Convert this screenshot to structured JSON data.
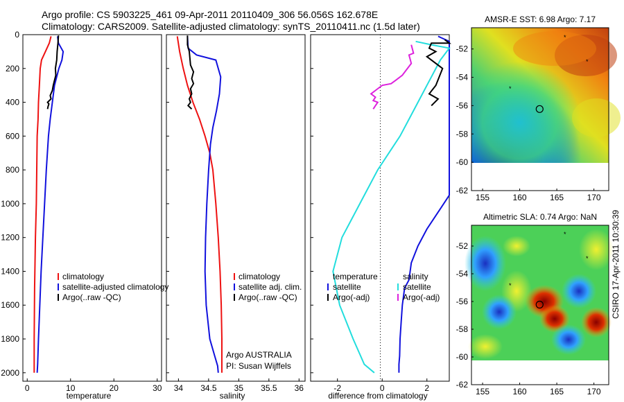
{
  "header": {
    "line1": "Argo profile: CS 5903225_461 09-Apr-2011 20110409_306 56.056S 162.678E",
    "line2": "Climatology: CARS2009. Satellite-adjusted climatology: synTS_20110411.nc (1.5d later)"
  },
  "side_label": "CSIRO 17-Apr-2011 10:30:39",
  "colors": {
    "red": "#ee1111",
    "blue": "#1010dd",
    "black": "#000000",
    "cyan": "#22dddd",
    "magenta": "#dd22dd"
  },
  "chart_data": [
    {
      "type": "line",
      "xlabel": "temperature",
      "ylabel": "",
      "xlim": [
        -1,
        31
      ],
      "ylim": [
        2050,
        0
      ],
      "xticks": [
        0,
        10,
        20,
        30
      ],
      "yticks": [
        0,
        200,
        400,
        600,
        800,
        1000,
        1200,
        1400,
        1600,
        1800,
        2000
      ],
      "series": [
        {
          "name": "climatology",
          "color": "#ee1111",
          "x": [
            5.5,
            5.1,
            4.2,
            3.3,
            3.0,
            2.8,
            2.6,
            2.5,
            2.3,
            2.2,
            2.1,
            1.9,
            1.7,
            1.6,
            1.6
          ],
          "y": [
            10,
            50,
            100,
            150,
            200,
            300,
            400,
            500,
            600,
            800,
            1000,
            1200,
            1500,
            1800,
            2000
          ]
        },
        {
          "name": "satellite-adjusted climatology",
          "color": "#1010dd",
          "x": [
            7.0,
            7.2,
            8.3,
            8.0,
            7.3,
            6.3,
            5.8,
            5.3,
            4.9,
            4.4,
            4.0,
            3.6,
            3.2,
            2.9,
            2.6,
            2.4,
            2.3
          ],
          "y": [
            10,
            50,
            100,
            150,
            200,
            300,
            400,
            500,
            600,
            800,
            1000,
            1200,
            1400,
            1600,
            1800,
            1950,
            2000
          ]
        },
        {
          "name": "Argo(..raw -QC)",
          "color": "#000000",
          "x": [
            7.2,
            7.1,
            6.9,
            6.8,
            6.5,
            6.6,
            6.2,
            6.0,
            5.8,
            5.3,
            5.5,
            4.7,
            5.0,
            4.8,
            4.7
          ],
          "y": [
            5,
            50,
            100,
            150,
            200,
            240,
            280,
            300,
            330,
            360,
            380,
            400,
            410,
            425,
            440
          ]
        }
      ],
      "legend": [
        "climatology",
        "satellite-adjusted climatology",
        "Argo(..raw -QC)"
      ],
      "legend_position": "lower-right"
    },
    {
      "type": "line",
      "xlabel": "salinity",
      "ylabel": "",
      "xlim": [
        33.8,
        36.1
      ],
      "ylim": [
        2050,
        0
      ],
      "xticks": [
        34,
        34.5,
        35,
        35.5,
        36
      ],
      "series": [
        {
          "name": "climatology",
          "color": "#ee1111",
          "x": [
            33.98,
            34.02,
            34.08,
            34.15,
            34.24,
            34.35,
            34.44,
            34.52,
            34.57,
            34.62,
            34.66,
            34.69,
            34.71,
            34.72,
            34.72
          ],
          "y": [
            10,
            100,
            200,
            300,
            400,
            500,
            600,
            700,
            800,
            1000,
            1200,
            1400,
            1600,
            1800,
            2000
          ]
        },
        {
          "name": "satellite adj. clim.",
          "color": "#1010dd",
          "x": [
            34.15,
            34.16,
            34.3,
            34.62,
            34.7,
            34.68,
            34.63,
            34.57,
            34.53,
            34.5,
            34.47,
            34.45,
            34.44,
            34.46,
            34.52,
            34.6,
            34.65,
            34.66
          ],
          "y": [
            10,
            80,
            120,
            150,
            250,
            350,
            450,
            550,
            650,
            800,
            1000,
            1200,
            1400,
            1600,
            1800,
            1900,
            1960,
            2000
          ]
        },
        {
          "name": "Argo(..raw -QC)",
          "color": "#000000",
          "x": [
            34.15,
            34.15,
            34.18,
            34.2,
            34.25,
            34.22,
            34.25,
            34.2,
            34.22,
            34.18,
            34.2,
            34.16,
            34.22
          ],
          "y": [
            5,
            60,
            100,
            180,
            220,
            260,
            290,
            320,
            350,
            380,
            400,
            420,
            440
          ]
        }
      ],
      "legend": [
        "climatology",
        "satellite adj. clim.",
        "Argo(..raw -QC)"
      ],
      "legend_position": "lower-right",
      "annotations": [
        "Argo AUSTRALIA",
        "PI: Susan Wijffels"
      ]
    },
    {
      "type": "line",
      "xlabel": "difference from climatology",
      "ylabel": "",
      "xlim": [
        -3.2,
        3.0
      ],
      "ylim": [
        2050,
        0
      ],
      "xticks": [
        -2,
        0,
        2
      ],
      "series": [
        {
          "name": "temperature satellite",
          "color": "#1010dd",
          "x": [
            2.5,
            3.0,
            3.0,
            2.5,
            2.0,
            1.6,
            1.3,
            1.2,
            1.0,
            0.9,
            0.85,
            0.8,
            0.78,
            0.75,
            0.75
          ],
          "y": [
            10,
            40,
            950,
            1050,
            1150,
            1250,
            1350,
            1450,
            1500,
            1600,
            1700,
            1800,
            1900,
            1950,
            2000
          ]
        },
        {
          "name": "salinity satellite",
          "color": "#22dddd",
          "x": [
            1.5,
            2.2,
            3.0,
            2.6,
            2.0,
            1.6,
            1.2,
            0.8,
            0.3,
            -0.2,
            -1.0,
            -1.8,
            -2.2,
            -1.9,
            -1.3,
            -0.8,
            -0.35
          ],
          "y": [
            40,
            60,
            80,
            150,
            300,
            400,
            500,
            600,
            700,
            800,
            1000,
            1200,
            1400,
            1600,
            1800,
            1950,
            2000
          ]
        },
        {
          "name": "temperature Argo(-adj)",
          "color": "#000000",
          "x": [
            2.8,
            3.0,
            2.2,
            2.1,
            2.4,
            2.0,
            2.7,
            2.4,
            2.1,
            2.5,
            2.2
          ],
          "y": [
            30,
            50,
            50,
            80,
            100,
            130,
            200,
            300,
            350,
            380,
            420
          ]
        },
        {
          "name": "salinity Argo(-adj)",
          "color": "#dd22dd",
          "x": [
            1.3,
            1.4,
            1.2,
            1.3,
            0.9,
            0.6,
            0.4,
            0.0,
            -0.2,
            -0.5,
            -0.3,
            -0.4,
            -0.2,
            -0.3,
            -0.4
          ],
          "y": [
            60,
            110,
            120,
            170,
            240,
            270,
            290,
            300,
            320,
            350,
            370,
            390,
            400,
            420,
            440
          ]
        }
      ],
      "legend": [
        "temperature",
        "salinity",
        "satellite",
        "satellite",
        "Argo(-adj)",
        "Argo(-adj)"
      ],
      "legend_position": "lower-left"
    },
    {
      "type": "heatmap",
      "title": "AMSR-E SST: 6.98 Argo: 7.17",
      "xlim": [
        153.5,
        172
      ],
      "ylim": [
        -62,
        -50.5
      ],
      "xticks": [
        155,
        160,
        165,
        170
      ],
      "yticks": [
        -52,
        -54,
        -56,
        -58,
        -60,
        -62
      ],
      "argo_position": [
        162.7,
        -56.06
      ],
      "other_floats": [
        [
          166,
          -51
        ],
        [
          169,
          -52.5
        ],
        [
          158.8,
          -54.8
        ]
      ]
    },
    {
      "type": "heatmap",
      "title": "Altimetric SLA: 0.74 Argo: NaN",
      "xlim": [
        153.5,
        172
      ],
      "ylim": [
        -62,
        -50.5
      ],
      "xticks": [
        155,
        160,
        165,
        170
      ],
      "yticks": [
        -52,
        -54,
        -56,
        -58,
        -60,
        -62
      ],
      "argo_position": [
        162.7,
        -56.06
      ],
      "other_floats": [
        [
          166,
          -51
        ],
        [
          169,
          -52.5
        ],
        [
          158.8,
          -54.8
        ]
      ]
    }
  ]
}
